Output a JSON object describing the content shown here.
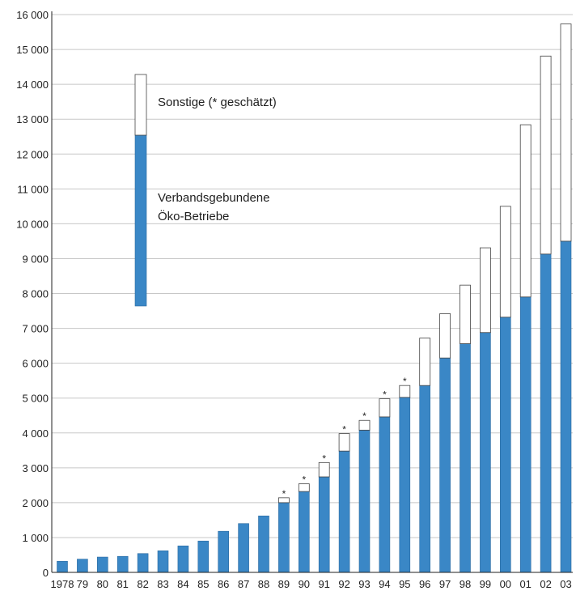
{
  "chart_data": {
    "type": "bar",
    "stacked": true,
    "categories": [
      "1978",
      "79",
      "80",
      "81",
      "82",
      "83",
      "84",
      "85",
      "86",
      "87",
      "88",
      "89",
      "90",
      "91",
      "92",
      "93",
      "94",
      "95",
      "96",
      "97",
      "98",
      "99",
      "00",
      "01",
      "02",
      "03"
    ],
    "series": [
      {
        "name": "Verbandsgebundene Öko-Betriebe",
        "legend_lines": [
          "Verbandsgebundene",
          "Öko-Betriebe"
        ],
        "color": "#3a87c6",
        "values": [
          320,
          380,
          440,
          460,
          540,
          620,
          760,
          900,
          1180,
          1400,
          1620,
          2000,
          2320,
          2740,
          3480,
          4080,
          4460,
          5020,
          5360,
          6150,
          6560,
          6880,
          7320,
          7900,
          9130,
          9500
        ]
      },
      {
        "name": "Sonstige (* geschätzt)",
        "color": "#ffffff",
        "values": [
          0,
          0,
          0,
          0,
          0,
          0,
          0,
          0,
          0,
          0,
          0,
          140,
          220,
          410,
          500,
          280,
          520,
          340,
          1360,
          1270,
          1680,
          2430,
          3180,
          4940,
          5680,
          6230
        ]
      }
    ],
    "estimated_marker": "*",
    "estimated_categories": [
      "89",
      "90",
      "91",
      "92",
      "93",
      "94",
      "95"
    ],
    "y_ticks": [
      "0",
      "1 000",
      "2 000",
      "3 000",
      "4 000",
      "5 000",
      "6 000",
      "7 000",
      "8 000",
      "9 000",
      "10 000",
      "11 000",
      "12 000",
      "13 000",
      "14 000",
      "15 000",
      "16 000"
    ],
    "ylim": [
      0,
      16000
    ],
    "grid": true,
    "legend_placement": "top-left"
  }
}
